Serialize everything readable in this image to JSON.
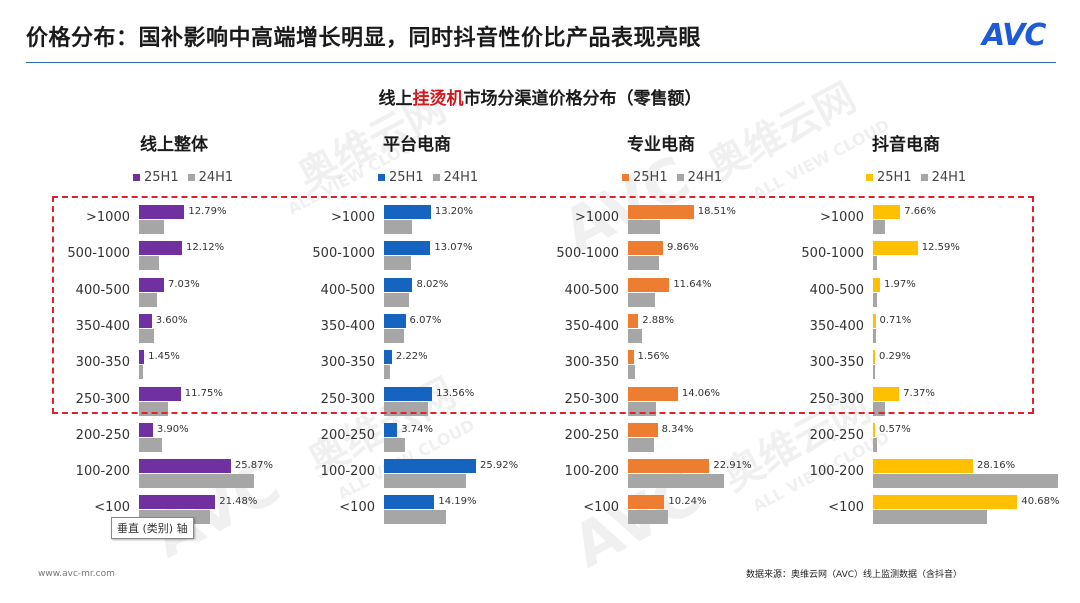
{
  "header": {
    "title": "价格分布：国补影响中高端增长明显，同时抖音性价比产品表现亮眼",
    "logo_text": "AVC"
  },
  "chart_title": {
    "prefix": "线上",
    "highlight": "挂烫机",
    "suffix": "市场分渠道价格分布（零售额）"
  },
  "watermarks": [
    "奥维云网",
    "ALL VIEW CLOUD",
    "AVC"
  ],
  "chart_data": [
    {
      "type": "bar",
      "title": "线上整体",
      "categories": [
        ">1000",
        "500-1000",
        "400-500",
        "350-400",
        "300-350",
        "250-300",
        "200-250",
        "100-200",
        "<100"
      ],
      "series": [
        {
          "name": "25H1",
          "color": "#7030a0",
          "values": [
            12.79,
            12.12,
            7.03,
            3.6,
            1.45,
            11.75,
            3.9,
            25.87,
            21.48
          ],
          "labels": [
            "12.79%",
            "12.12%",
            "7.03%",
            "3.60%",
            "1.45%",
            "11.75%",
            "3.90%",
            "25.87%",
            "21.48%"
          ]
        },
        {
          "name": "24H1",
          "color": "#a6a6a6",
          "values": [
            7.0,
            5.5,
            5.0,
            4.2,
            1.2,
            8.2,
            6.5,
            32.5,
            20.0
          ]
        }
      ]
    },
    {
      "type": "bar",
      "title": "平台电商",
      "categories": [
        ">1000",
        "500-1000",
        "400-500",
        "350-400",
        "300-350",
        "250-300",
        "200-250",
        "100-200",
        "<100"
      ],
      "series": [
        {
          "name": "25H1",
          "color": "#1565c0",
          "values": [
            13.2,
            13.07,
            8.02,
            6.07,
            2.22,
            13.56,
            3.74,
            25.92,
            14.19
          ],
          "labels": [
            "13.20%",
            "13.07%",
            "8.02%",
            "6.07%",
            "2.22%",
            "13.56%",
            "3.74%",
            "25.92%",
            "14.19%"
          ]
        },
        {
          "name": "24H1",
          "color": "#a6a6a6",
          "values": [
            8.0,
            7.5,
            7.0,
            5.5,
            1.8,
            12.4,
            6.0,
            23.0,
            17.5
          ]
        }
      ]
    },
    {
      "type": "bar",
      "title": "专业电商",
      "categories": [
        ">1000",
        "500-1000",
        "400-500",
        "350-400",
        "300-350",
        "250-300",
        "200-250",
        "100-200",
        "<100"
      ],
      "series": [
        {
          "name": "25H1",
          "color": "#ed7d31",
          "values": [
            18.51,
            9.86,
            11.64,
            2.88,
            1.56,
            14.06,
            8.34,
            22.91,
            10.24
          ],
          "labels": [
            "18.51%",
            "9.86%",
            "11.64%",
            "2.88%",
            "1.56%",
            "14.06%",
            "8.34%",
            "22.91%",
            "10.24%"
          ]
        },
        {
          "name": "24H1",
          "color": "#a6a6a6",
          "values": [
            9.0,
            8.8,
            7.5,
            4.0,
            2.0,
            7.8,
            7.4,
            27.0,
            11.2
          ]
        }
      ]
    },
    {
      "type": "bar",
      "title": "抖音电商",
      "categories": [
        ">1000",
        "500-1000",
        "400-500",
        "350-400",
        "300-350",
        "250-300",
        "200-250",
        "100-200",
        "<100"
      ],
      "series": [
        {
          "name": "25H1",
          "color": "#ffc000",
          "values": [
            7.66,
            12.59,
            1.97,
            0.71,
            0.29,
            7.37,
            0.57,
            28.16,
            40.68
          ],
          "labels": [
            "7.66%",
            "12.59%",
            "1.97%",
            "0.71%",
            "0.29%",
            "7.37%",
            "0.57%",
            "28.16%",
            "40.68%"
          ]
        },
        {
          "name": "24H1",
          "color": "#a6a6a6",
          "values": [
            3.3,
            1.2,
            1.0,
            0.8,
            0.6,
            3.3,
            1.2,
            52.0,
            32.0
          ]
        }
      ]
    }
  ],
  "tooltip": "垂直 (类别) 轴",
  "footer": {
    "website": "www.avc-mr.com",
    "source": "数据来源：奥维云网（AVC）线上监测数据（含抖音）"
  }
}
